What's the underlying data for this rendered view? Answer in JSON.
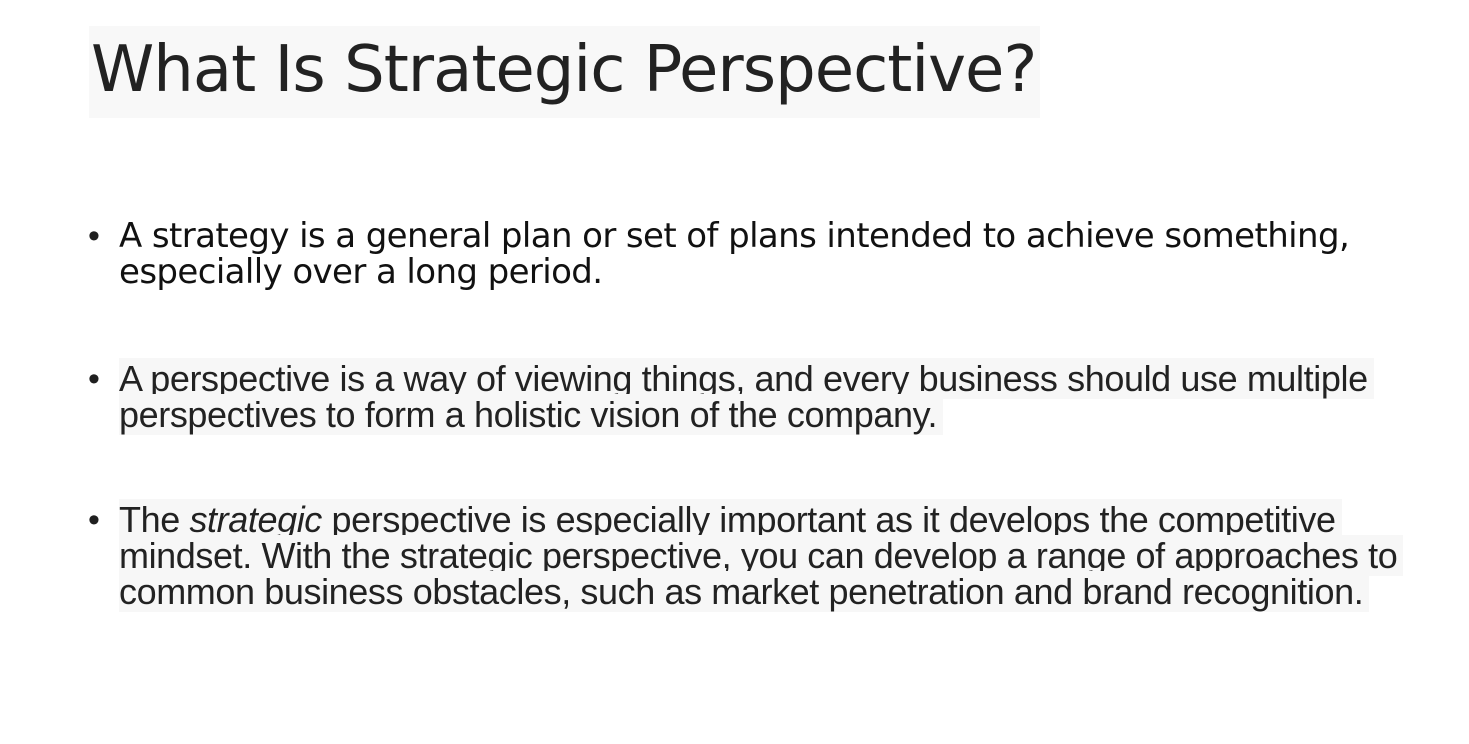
{
  "slide": {
    "title": "What Is Strategic Perspective?",
    "bullet_symbol": "•",
    "bullets": [
      {
        "text": "A strategy is a general plan or set of plans intended to achieve something, especially over a long period."
      },
      {
        "text": "A perspective is a way of viewing things, and every business should use multiple perspectives to form a holistic vision of the company."
      },
      {
        "before": "The ",
        "italic": "strategic",
        "after": " perspective is especially important as it develops the competitive mindset. With the strategic perspective, you can develop a range of approaches to common business obstacles, such as market penetration and brand recognition."
      }
    ]
  }
}
